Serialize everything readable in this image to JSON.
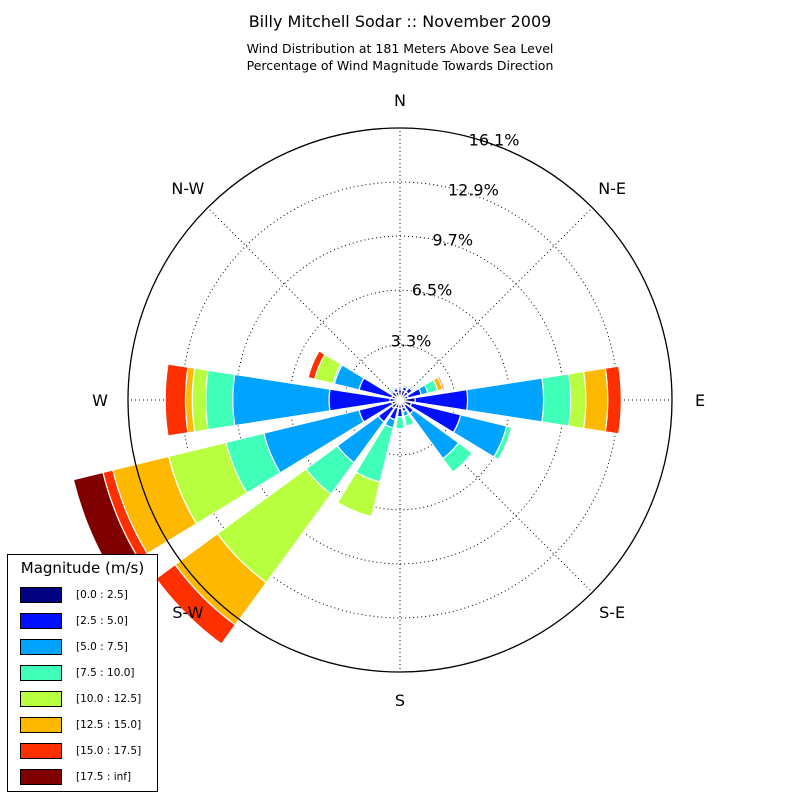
{
  "title": "Billy Mitchell Sodar :: November 2009",
  "subtitle_line1": "Wind Distribution at 181 Meters Above Sea Level",
  "subtitle_line2": "Percentage of Wind Magnitude Towards Direction",
  "legend": {
    "title": "Magnitude (m/s)",
    "items": [
      {
        "label": "[0.0 : 2.5]",
        "color": "#000080"
      },
      {
        "label": "[2.5 : 5.0]",
        "color": "#0010ff"
      },
      {
        "label": "[5.0 : 7.5]",
        "color": "#00a4ff"
      },
      {
        "label": "[7.5 : 10.0]",
        "color": "#40ffb8"
      },
      {
        "label": "[10.0 : 12.5]",
        "color": "#b8ff40"
      },
      {
        "label": "[12.5 : 15.0]",
        "color": "#ffb800"
      },
      {
        "label": "[15.0 : 17.5]",
        "color": "#ff3000"
      },
      {
        "label": "[17.5 : inf]",
        "color": "#800000"
      }
    ]
  },
  "chart_data": {
    "type": "wind_rose",
    "title": "Billy Mitchell Sodar :: November 2009",
    "direction_labels": [
      "N",
      "N-E",
      "E",
      "S-E",
      "S",
      "S-W",
      "W",
      "N-W"
    ],
    "radial_ticks": [
      "3.3%",
      "6.5%",
      "9.7%",
      "12.9%",
      "16.1%"
    ],
    "radial_tick_values": [
      3.25,
      6.5,
      9.7,
      12.9,
      16.1
    ],
    "rmax": 16.1,
    "grid": true,
    "legend_position": "bottom-left",
    "units": "percent",
    "bin_width_deg": 22.5,
    "directions_deg": [
      0,
      22.5,
      45,
      67.5,
      90,
      112.5,
      135,
      157.5,
      180,
      202.5,
      225,
      247.5,
      270,
      292.5,
      315,
      337.5
    ],
    "series": [
      {
        "name": "[0.0 : 2.5]",
        "values": [
          0.6,
          0.6,
          0.6,
          0.5,
          0.9,
          0.7,
          0.4,
          0.5,
          0.5,
          0.5,
          0.6,
          0.5,
          0.6,
          0.5,
          0.6,
          0.5
        ]
      },
      {
        "name": "[2.5 : 5.0]",
        "values": [
          0.1,
          0.2,
          0.3,
          0.8,
          3.1,
          3.0,
          0.6,
          0.2,
          0.5,
          0.7,
          1.0,
          2.0,
          3.6,
          2.0,
          0.1,
          0.2
        ]
      },
      {
        "name": "[5.0 : 7.5]",
        "values": [
          0.0,
          0.1,
          0.1,
          0.4,
          4.5,
          2.8,
          3.3,
          0.3,
          0.0,
          0.5,
          3.0,
          5.8,
          5.7,
          1.5,
          0.1,
          0.1
        ]
      },
      {
        "name": "[7.5 : 10.0]",
        "values": [
          0.0,
          0.0,
          0.1,
          0.6,
          1.6,
          0.3,
          1.0,
          0.6,
          0.7,
          3.3,
          2.3,
          2.3,
          1.6,
          0.1,
          0.1,
          0.0
        ]
      },
      {
        "name": "[10.0 : 12.5]",
        "values": [
          0.0,
          0.0,
          0.0,
          0.0,
          0.9,
          0.0,
          0.0,
          0.0,
          0.0,
          2.1,
          6.5,
          3.5,
          0.8,
          1.1,
          0.0,
          0.0
        ]
      },
      {
        "name": "[12.5 : 15.0]",
        "values": [
          0.0,
          0.0,
          0.0,
          0.3,
          1.3,
          0.0,
          0.0,
          0.0,
          0.0,
          0.0,
          3.1,
          3.4,
          0.4,
          0.0,
          0.0,
          0.0
        ]
      },
      {
        "name": "[15.0 : 17.5]",
        "values": [
          0.0,
          0.0,
          0.0,
          0.1,
          0.8,
          0.0,
          0.0,
          0.0,
          0.0,
          0.0,
          1.4,
          0.6,
          1.2,
          0.4,
          0.0,
          0.0
        ]
      },
      {
        "name": "[17.5 : inf]",
        "values": [
          0.0,
          0.0,
          0.0,
          0.0,
          0.0,
          0.0,
          0.0,
          0.0,
          0.0,
          0.0,
          0.0,
          1.8,
          0.0,
          0.0,
          0.0,
          0.0
        ]
      }
    ]
  }
}
